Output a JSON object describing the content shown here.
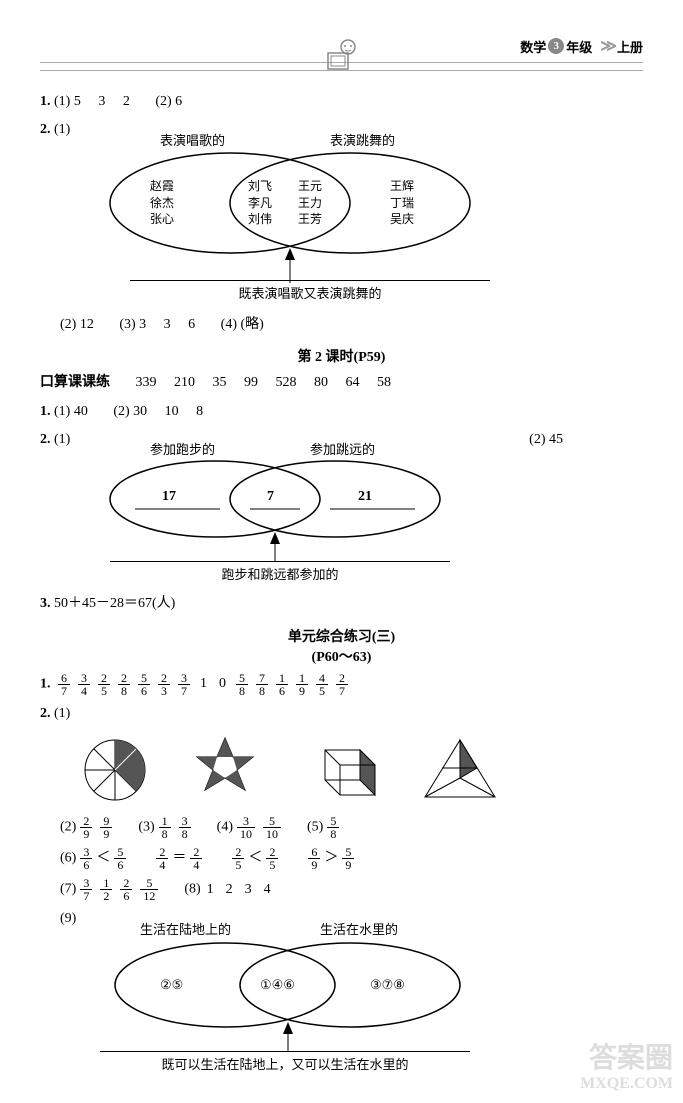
{
  "header": {
    "subject": "数学",
    "grade_num": "3",
    "grade_suffix": "年级",
    "volume": "上册"
  },
  "q1": {
    "num": "1.",
    "p1_label": "(1)",
    "p1_vals": [
      "5",
      "3",
      "2"
    ],
    "p2_label": "(2)",
    "p2_val": "6"
  },
  "q2": {
    "num": "2.",
    "p1_label": "(1)",
    "venn1": {
      "left_title": "表演唱歌的",
      "right_title": "表演跳舞的",
      "left_names": [
        "赵霞",
        "徐杰",
        "张心"
      ],
      "mid_names_l": [
        "刘飞",
        "李凡",
        "刘伟"
      ],
      "mid_names_r": [
        "王元",
        "王力",
        "王芳"
      ],
      "right_names": [
        "王辉",
        "丁瑞",
        "吴庆"
      ],
      "caption": "既表演唱歌又表演跳舞的"
    },
    "rest": {
      "p2_label": "(2)",
      "p2_val": "12",
      "p3_label": "(3)",
      "p3_vals": [
        "3",
        "3",
        "6"
      ],
      "p4_label": "(4)",
      "p4_val": "(略)"
    }
  },
  "lesson2": {
    "title": "第 2 课时(P59)",
    "oral_label": "口算课课练",
    "oral_vals": [
      "339",
      "210",
      "35",
      "99",
      "528",
      "80",
      "64",
      "58"
    ],
    "q1": {
      "num": "1.",
      "p1_label": "(1)",
      "p1_val": "40",
      "p2_label": "(2)",
      "p2_vals": [
        "30",
        "10",
        "8"
      ]
    },
    "q2": {
      "num": "2.",
      "p1_label": "(1)",
      "venn": {
        "left_title": "参加跑步的",
        "right_title": "参加跳远的",
        "left_val": "17",
        "mid_val": "7",
        "right_val": "21",
        "caption": "跑步和跳远都参加的"
      },
      "p2_label": "(2)",
      "p2_val": "45"
    },
    "q3": {
      "num": "3.",
      "expr": "50＋45－28＝67(人)"
    }
  },
  "unit3": {
    "title1": "单元综合练习(三)",
    "title2": "(P60～63)",
    "q1": {
      "num": "1.",
      "fracs": [
        {
          "n": "6",
          "d": "7"
        },
        {
          "n": "3",
          "d": "4"
        },
        {
          "n": "2",
          "d": "5"
        },
        {
          "n": "2",
          "d": "8"
        },
        {
          "n": "5",
          "d": "6"
        },
        {
          "n": "2",
          "d": "3"
        },
        {
          "n": "3",
          "d": "7"
        }
      ],
      "ints": [
        "1",
        "0"
      ],
      "fracs2": [
        {
          "n": "5",
          "d": "8"
        },
        {
          "n": "7",
          "d": "8"
        },
        {
          "n": "1",
          "d": "6"
        },
        {
          "n": "1",
          "d": "9"
        },
        {
          "n": "4",
          "d": "5"
        },
        {
          "n": "2",
          "d": "7"
        }
      ]
    },
    "q2": {
      "num": "2.",
      "p1_label": "(1)",
      "shapes": {
        "circle_fill": "#555",
        "star_fill": "#555",
        "box_fill": "#555",
        "tri_fill": "#555"
      },
      "p2": {
        "label": "(2)",
        "fracs": [
          {
            "n": "2",
            "d": "9"
          },
          {
            "n": "9",
            "d": "9"
          }
        ]
      },
      "p3": {
        "label": "(3)",
        "fracs": [
          {
            "n": "1",
            "d": "8"
          },
          {
            "n": "3",
            "d": "8"
          }
        ]
      },
      "p4": {
        "label": "(4)",
        "fracs": [
          {
            "n": "3",
            "d": "10"
          },
          {
            "n": "5",
            "d": "10"
          }
        ]
      },
      "p5": {
        "label": "(5)",
        "fracs": [
          {
            "n": "5",
            "d": "8"
          }
        ]
      },
      "p6": {
        "label": "(6)",
        "parts": [
          {
            "f1": {
              "n": "3",
              "d": "6"
            },
            "op": "＜",
            "f2": {
              "n": "5",
              "d": "6"
            }
          },
          {
            "f1": {
              "n": "2",
              "d": "4"
            },
            "op": "＝",
            "f2": {
              "n": "2",
              "d": "4"
            }
          },
          {
            "f1": {
              "n": "2",
              "d": "5"
            },
            "op": "＜",
            "f2": {
              "n": "2",
              "d": "5"
            }
          },
          {
            "f1": {
              "n": "6",
              "d": "9"
            },
            "op": "＞",
            "f2": {
              "n": "5",
              "d": "9"
            }
          }
        ]
      },
      "p7": {
        "label": "(7)",
        "fracs": [
          {
            "n": "3",
            "d": "7"
          },
          {
            "n": "1",
            "d": "2"
          },
          {
            "n": "2",
            "d": "6"
          },
          {
            "n": "5",
            "d": "12"
          }
        ]
      },
      "p8": {
        "label": "(8)",
        "vals": [
          "1",
          "2",
          "3",
          "4"
        ]
      },
      "p9": {
        "label": "(9)",
        "venn": {
          "left_title": "生活在陆地上的",
          "right_title": "生活在水里的",
          "left_val": "②⑤",
          "mid_val": "①④⑥",
          "right_val": "③⑦⑧",
          "caption": "既可以生活在陆地上，又可以生活在水里的"
        }
      }
    }
  },
  "watermark": {
    "l1": "答案圈",
    "l2": "MXQE.COM"
  }
}
